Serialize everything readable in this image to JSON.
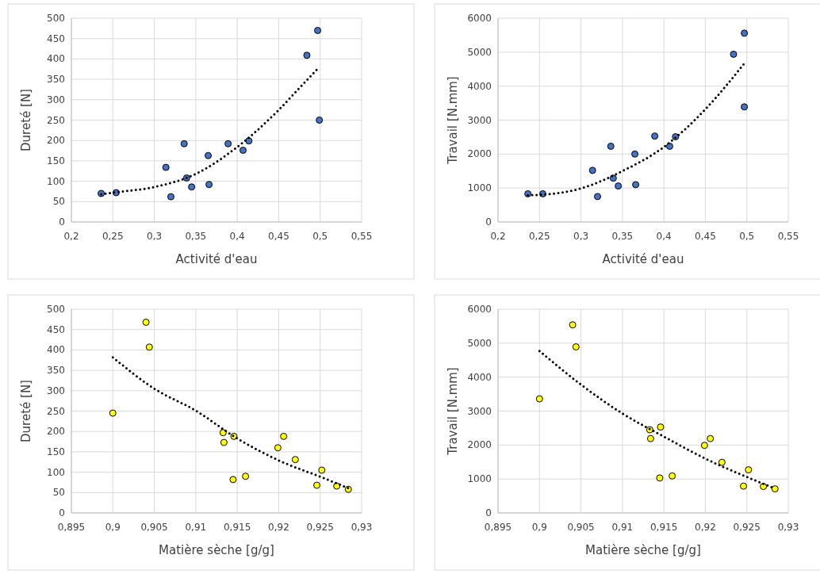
{
  "chart_data": [
    {
      "type": "scatter",
      "xlabel": "Activité d'eau",
      "ylabel": "Dureté [N]",
      "xlim": [
        0.2,
        0.55
      ],
      "xticks": [
        {
          "value": 0.2,
          "label": "0,2"
        },
        {
          "value": 0.25,
          "label": "0,25"
        },
        {
          "value": 0.3,
          "label": "0,3"
        },
        {
          "value": 0.35,
          "label": "0,35"
        },
        {
          "value": 0.4,
          "label": "0,4"
        },
        {
          "value": 0.45,
          "label": "0,45"
        },
        {
          "value": 0.5,
          "label": "0,5"
        },
        {
          "value": 0.55,
          "label": "0,55"
        }
      ],
      "ylim": [
        0,
        500
      ],
      "yticks": [
        0,
        50,
        100,
        150,
        200,
        250,
        300,
        350,
        400,
        450,
        500
      ],
      "grid": true,
      "series": [
        {
          "color": "#4472c4",
          "marker": "circle",
          "x": [
            0.236,
            0.254,
            0.314,
            0.32,
            0.336,
            0.339,
            0.345,
            0.365,
            0.366,
            0.389,
            0.407,
            0.414,
            0.484,
            0.497,
            0.499
          ],
          "values": [
            70,
            72,
            134,
            62,
            192,
            108,
            86,
            163,
            92,
            192,
            176,
            199,
            409,
            470,
            250
          ]
        },
        {
          "type": "line",
          "color": "#000000",
          "line_style": "dotted",
          "marker": "none",
          "x": [
            0.236,
            0.25,
            0.3,
            0.35,
            0.4,
            0.45,
            0.475,
            0.497
          ],
          "values": [
            68,
            72,
            86,
            118,
            184,
            275,
            329,
            376
          ]
        }
      ]
    },
    {
      "type": "scatter",
      "xlabel": "Activité d'eau",
      "ylabel": "Travail [N.mm]",
      "xlim": [
        0.2,
        0.55
      ],
      "xticks": [
        {
          "value": 0.2,
          "label": "0,2"
        },
        {
          "value": 0.25,
          "label": "0,25"
        },
        {
          "value": 0.3,
          "label": "0,3"
        },
        {
          "value": 0.35,
          "label": "0,35"
        },
        {
          "value": 0.4,
          "label": "0,4"
        },
        {
          "value": 0.45,
          "label": "0,45"
        },
        {
          "value": 0.5,
          "label": "0,5"
        },
        {
          "value": 0.55,
          "label": "0,55"
        }
      ],
      "ylim": [
        0,
        6000
      ],
      "yticks": [
        0,
        1000,
        2000,
        3000,
        4000,
        5000,
        6000
      ],
      "grid": true,
      "series": [
        {
          "color": "#4472c4",
          "marker": "circle",
          "x": [
            0.236,
            0.254,
            0.314,
            0.32,
            0.336,
            0.339,
            0.345,
            0.365,
            0.366,
            0.389,
            0.407,
            0.414,
            0.484,
            0.497,
            0.497
          ],
          "values": [
            830,
            830,
            1520,
            750,
            2230,
            1290,
            1060,
            2000,
            1100,
            2530,
            2230,
            2510,
            4940,
            5560,
            3390
          ]
        },
        {
          "type": "line",
          "color": "#000000",
          "line_style": "dotted",
          "marker": "none",
          "x": [
            0.236,
            0.25,
            0.3,
            0.35,
            0.4,
            0.45,
            0.497
          ],
          "values": [
            790,
            800,
            990,
            1500,
            2210,
            3320,
            4670
          ]
        }
      ]
    },
    {
      "type": "scatter",
      "xlabel": "Matière sèche [g/g]",
      "ylabel": "Dureté [N]",
      "xlim": [
        0.895,
        0.93
      ],
      "xticks": [
        {
          "value": 0.895,
          "label": "0,895"
        },
        {
          "value": 0.9,
          "label": "0,9"
        },
        {
          "value": 0.905,
          "label": "0,905"
        },
        {
          "value": 0.91,
          "label": "0,91"
        },
        {
          "value": 0.915,
          "label": "0,915"
        },
        {
          "value": 0.92,
          "label": "0,92"
        },
        {
          "value": 0.925,
          "label": "0,925"
        },
        {
          "value": 0.93,
          "label": "0,93"
        }
      ],
      "ylim": [
        0,
        500
      ],
      "yticks": [
        0,
        50,
        100,
        150,
        200,
        250,
        300,
        350,
        400,
        450,
        500
      ],
      "grid": true,
      "series": [
        {
          "color": "#ffff00",
          "marker": "circle",
          "x": [
            0.9,
            0.904,
            0.9044,
            0.9133,
            0.9134,
            0.9146,
            0.9145,
            0.916,
            0.9199,
            0.9206,
            0.922,
            0.9246,
            0.9252,
            0.927,
            0.9284
          ],
          "values": [
            245,
            468,
            407,
            197,
            173,
            188,
            82,
            90,
            160,
            188,
            131,
            68,
            105,
            66,
            58
          ]
        },
        {
          "type": "line",
          "color": "#000000",
          "line_style": "dotted",
          "marker": "none",
          "x": [
            0.9,
            0.905,
            0.91,
            0.915,
            0.92,
            0.925,
            0.9284
          ],
          "values": [
            382,
            305,
            251,
            183,
            129,
            89,
            61
          ]
        }
      ]
    },
    {
      "type": "scatter",
      "xlabel": "Matière sèche [g/g]",
      "ylabel": "Travail [N.mm]",
      "xlim": [
        0.895,
        0.93
      ],
      "xticks": [
        {
          "value": 0.895,
          "label": "0,895"
        },
        {
          "value": 0.9,
          "label": "0,9"
        },
        {
          "value": 0.905,
          "label": "0,905"
        },
        {
          "value": 0.91,
          "label": "0,91"
        },
        {
          "value": 0.915,
          "label": "0,915"
        },
        {
          "value": 0.92,
          "label": "0,92"
        },
        {
          "value": 0.925,
          "label": "0,925"
        },
        {
          "value": 0.93,
          "label": "0,93"
        }
      ],
      "ylim": [
        0,
        6000
      ],
      "yticks": [
        0,
        1000,
        2000,
        3000,
        4000,
        5000,
        6000
      ],
      "grid": true,
      "series": [
        {
          "color": "#ffff00",
          "marker": "circle",
          "x": [
            0.9,
            0.904,
            0.9044,
            0.9133,
            0.9134,
            0.9146,
            0.9145,
            0.916,
            0.9199,
            0.9206,
            0.922,
            0.9246,
            0.9252,
            0.927,
            0.9284
          ],
          "values": [
            3360,
            5540,
            4890,
            2450,
            2190,
            2530,
            1030,
            1090,
            1990,
            2190,
            1490,
            790,
            1270,
            780,
            710
          ]
        },
        {
          "type": "line",
          "color": "#000000",
          "line_style": "dotted",
          "marker": "none",
          "x": [
            0.9,
            0.905,
            0.91,
            0.915,
            0.92,
            0.925,
            0.9284
          ],
          "values": [
            4770,
            3780,
            2930,
            2250,
            1600,
            1060,
            720
          ]
        }
      ]
    }
  ]
}
